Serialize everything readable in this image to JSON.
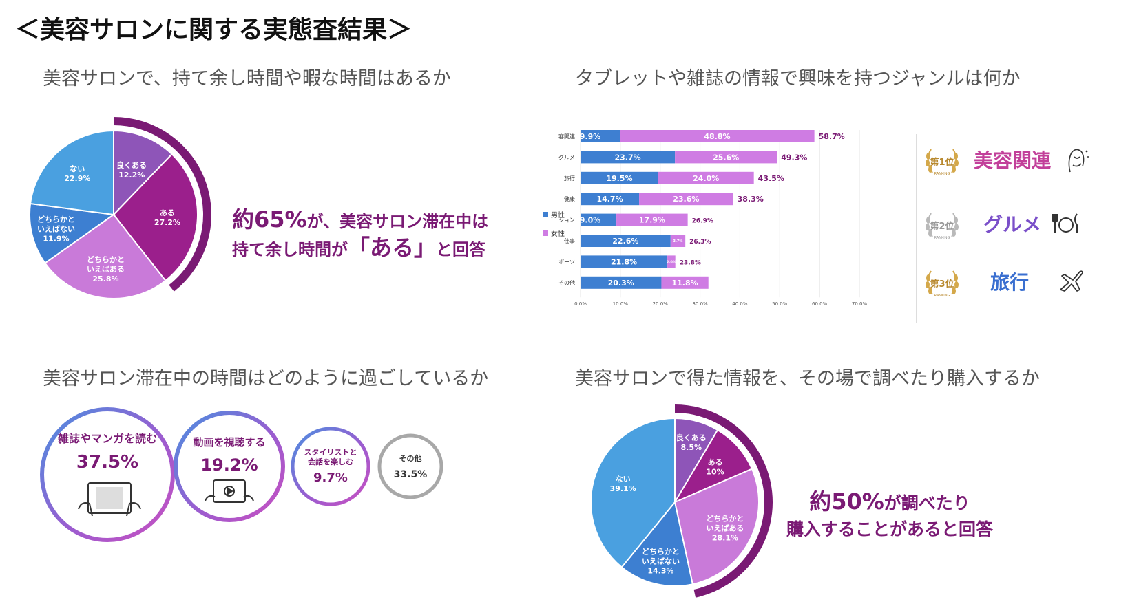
{
  "title": "＜美容サロンに関する実態査結果＞",
  "section1": {
    "title": "美容サロンで、持て余し時間や暇な時間はあるか",
    "callout": {
      "line1_big": "約65%",
      "line1_rest": "が、美容サロン滞在中は",
      "line2_pre": "持て余し時間が",
      "line2_big": "「ある」",
      "line2_post": "と回答"
    }
  },
  "section2": {
    "title": "タブレットや雑誌の情報で興味を持つジャンルは何か",
    "legend": {
      "male": "男性",
      "female": "女性"
    },
    "ranking": [
      {
        "rank_text": "第1位",
        "label": "美容関連",
        "icon": "woman-beauty-icon",
        "color": "#c2409a"
      },
      {
        "rank_text": "第2位",
        "label": "グルメ",
        "icon": "fork-knife-plate-icon",
        "color": "#7a4fc9"
      },
      {
        "rank_text": "第3位",
        "label": "旅行",
        "icon": "airplane-icon",
        "color": "#3a6fd0"
      }
    ],
    "ranking_sub": "RANKING"
  },
  "section3": {
    "title": "美容サロン滞在中の時間はどのように過ごしているか",
    "bubbles": [
      {
        "label": "雑誌やマンガを読む",
        "value": "37.5%",
        "icon": "tablet-hands-icon"
      },
      {
        "label": "動画を視聴する",
        "value": "19.2%",
        "icon": "video-tablet-icon"
      },
      {
        "label_line1": "スタイリストと",
        "label_line2": "会話を楽しむ",
        "value": "9.7%"
      },
      {
        "label": "その他",
        "value": "33.5%"
      }
    ]
  },
  "section4": {
    "title": "美容サロンで得た情報を、その場で調べたり購入するか",
    "callout": {
      "line1_big": "約50%",
      "line1_rest": "が調べたり",
      "line2": "購入することがあると回答"
    }
  },
  "chart_data": [
    {
      "type": "pie",
      "slices": [
        {
          "label": "良くある",
          "value": 12.2,
          "color": "#8e55b8"
        },
        {
          "label": "ある",
          "value": 27.2,
          "color": "#9b1f8c"
        },
        {
          "label": "どちらかと\nいえばある",
          "value": 25.8,
          "color": "#c97ad9"
        },
        {
          "label": "どちらかと\nいえばない",
          "value": 11.9,
          "color": "#3d7fd1"
        },
        {
          "label": "ない",
          "value": 22.9,
          "color": "#4aa0e0"
        }
      ]
    },
    {
      "type": "bar",
      "orientation": "horizontal",
      "stacked": true,
      "categories": [
        "美容関連",
        "グルメ",
        "旅行",
        "健康",
        "ファッション",
        "仕事",
        "スポーツ",
        "その他"
      ],
      "series": [
        {
          "name": "男性",
          "color": "#3e7fd1",
          "values": [
            9.9,
            23.7,
            19.5,
            14.7,
            9.0,
            22.6,
            21.8,
            20.3
          ],
          "labels": [
            "9.9%",
            "23.7%",
            "19.5%",
            "14.7%",
            "9.0%",
            "22.6%",
            "21.8%",
            "20.3%"
          ]
        },
        {
          "name": "女性",
          "color": "#cf7ce3",
          "values": [
            48.8,
            25.6,
            24.0,
            23.6,
            17.9,
            3.7,
            2.0,
            11.8
          ],
          "labels": [
            "48.8%",
            "25.6%",
            "24.0%",
            "23.6%",
            "17.9%",
            "3.7%",
            "2.0%",
            "11.8%"
          ]
        }
      ],
      "totals": [
        "58.7%",
        "49.3%",
        "43.5%",
        "38.3%",
        "26.9%",
        "26.3%",
        "23.8%",
        ""
      ],
      "xlim": [
        0,
        70
      ],
      "xticks": [
        "0.0%",
        "10.0%",
        "20.0%",
        "30.0%",
        "40.0%",
        "50.0%",
        "60.0%",
        "70.0%"
      ]
    },
    {
      "type": "pie",
      "slices": [
        {
          "label": "良くある",
          "value": 8.5,
          "color": "#8e55b8"
        },
        {
          "label": "ある",
          "value": 10,
          "display": "10%",
          "color": "#9b1f8c"
        },
        {
          "label": "どちらかと\nいえばある",
          "value": 28.1,
          "color": "#c97ad9"
        },
        {
          "label": "どちらかと\nいえばない",
          "value": 14.3,
          "color": "#3d7fd1"
        },
        {
          "label": "ない",
          "value": 39.1,
          "color": "#4aa0e0"
        }
      ]
    }
  ]
}
